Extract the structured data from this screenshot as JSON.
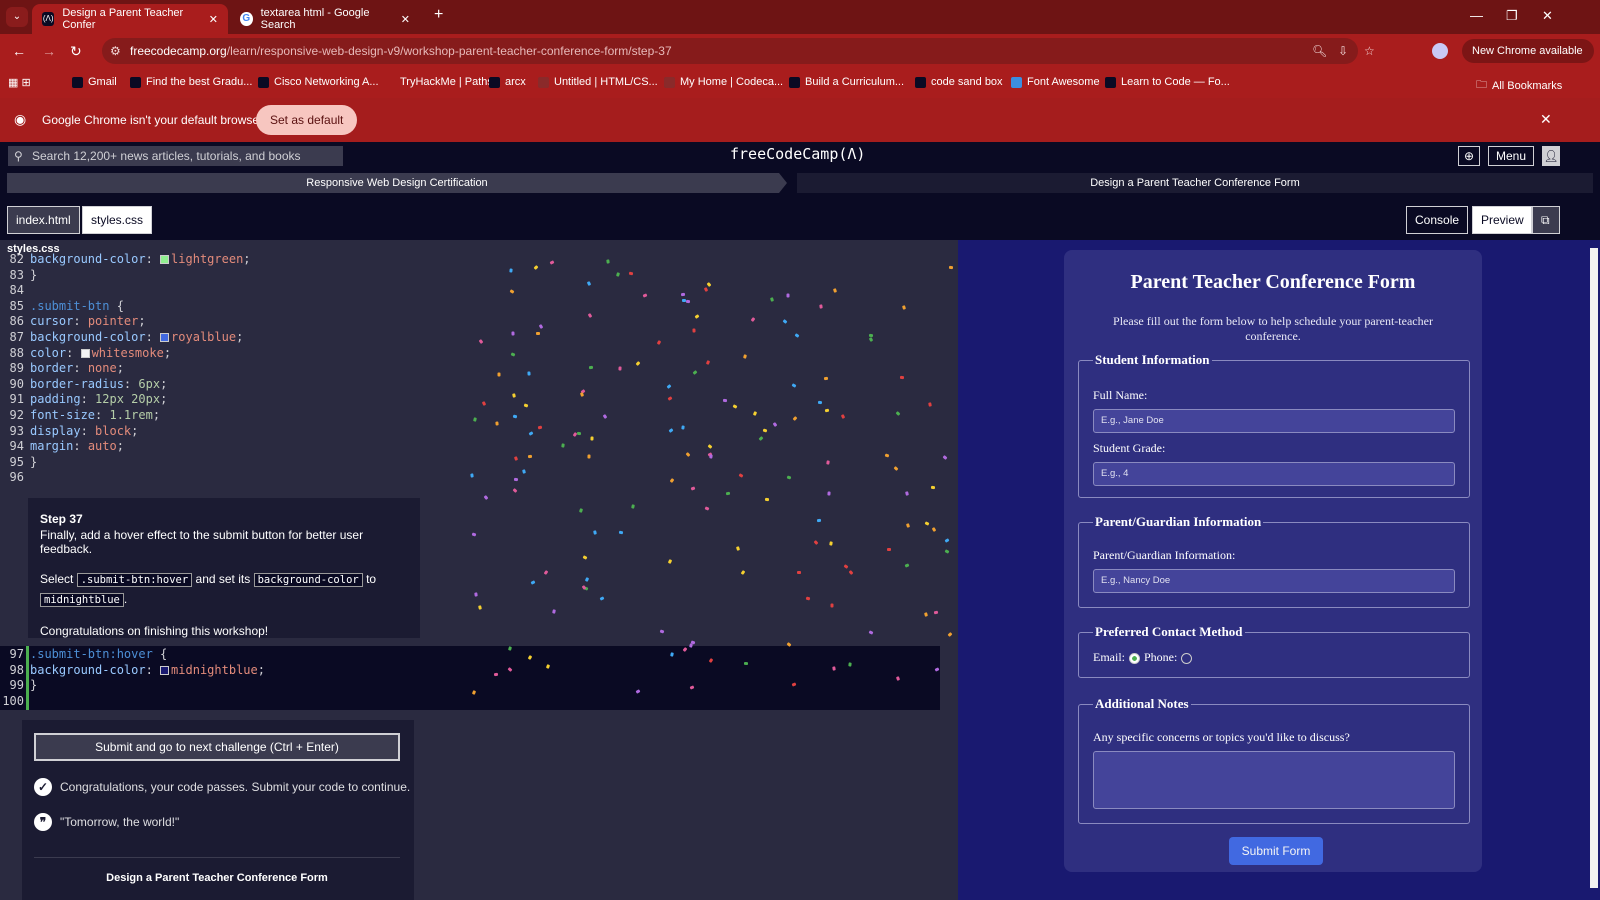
{
  "browser": {
    "tabs": [
      {
        "title": "Design a Parent Teacher Confer",
        "active": true
      },
      {
        "title": "textarea html - Google Search",
        "active": false
      }
    ],
    "url_host": "freecodecamp.org",
    "url_path": "/learn/responsive-web-design-v9/workshop-parent-teacher-conference-form/step-37",
    "new_chrome": "New Chrome available",
    "bookmarks": [
      "Gmail",
      "Find the best Gradu...",
      "Cisco Networking A...",
      "TryHackMe | Paths",
      "arcx",
      "Untitled | HTML/CS...",
      "My Home | Codeca...",
      "Build a Curriculum...",
      "code sand box",
      "Font Awesome",
      "Learn to Code — Fo..."
    ],
    "all_bookmarks": "All Bookmarks",
    "infobar": {
      "message": "Google Chrome isn't your default browser",
      "button": "Set as default"
    }
  },
  "fcc": {
    "search_placeholder": "Search 12,200+ news articles, tutorials, and books",
    "logo": "freeCodeCamp(Λ)",
    "menu": "Menu",
    "breadcrumb": [
      "Responsive Web Design Certification",
      "Design a Parent Teacher Conference Form"
    ],
    "file_tabs": [
      "index.html",
      "styles.css"
    ],
    "console": "Console",
    "preview": "Preview",
    "file_name": "styles.css"
  },
  "code_top": [
    {
      "n": "82",
      "indent": true,
      "prop": "background-color",
      "swatch": "#90ee90",
      "val": "lightgreen"
    },
    {
      "n": "83",
      "text": "}"
    },
    {
      "n": "84",
      "text": ""
    },
    {
      "n": "85",
      "sel": ".submit-btn",
      "text": " {"
    },
    {
      "n": "86",
      "indent": true,
      "prop": "cursor",
      "val": "pointer"
    },
    {
      "n": "87",
      "indent": true,
      "prop": "background-color",
      "swatch": "#4169e1",
      "val": "royalblue"
    },
    {
      "n": "88",
      "indent": true,
      "prop": "color",
      "swatch": "#f5f5f5",
      "val": "whitesmoke"
    },
    {
      "n": "89",
      "indent": true,
      "prop": "border",
      "val": "none"
    },
    {
      "n": "90",
      "indent": true,
      "prop": "border-radius",
      "num": "6px"
    },
    {
      "n": "91",
      "indent": true,
      "prop": "padding",
      "num": "12px 20px"
    },
    {
      "n": "92",
      "indent": true,
      "prop": "font-size",
      "num": "1.1rem"
    },
    {
      "n": "93",
      "indent": true,
      "prop": "display",
      "val": "block"
    },
    {
      "n": "94",
      "indent": true,
      "prop": "margin",
      "val": "auto"
    },
    {
      "n": "95",
      "text": "}"
    },
    {
      "n": "96",
      "text": ""
    }
  ],
  "code_bottom": [
    {
      "n": "97",
      "sel": ".submit-btn:hover",
      "text": " {"
    },
    {
      "n": "98",
      "indent": true,
      "prop": "background-color",
      "swatch": "#191970",
      "val": "midnightblue"
    },
    {
      "n": "99",
      "text": "}"
    },
    {
      "n": "100",
      "text": ""
    }
  ],
  "step": {
    "title": "Step 37",
    "desc": "Finally, add a hover effect to the submit button for better user feedback.",
    "select": "Select",
    "code1": ".submit-btn:hover",
    "and": "and set its",
    "code2": "background-color",
    "to": "to",
    "code3": "midnightblue",
    "congrats": "Congratulations on finishing this workshop!"
  },
  "lower": {
    "submit": "Submit and go to next challenge (Ctrl + Enter)",
    "passes": "Congratulations, your code passes. Submit your code to continue.",
    "quote": "\"Tomorrow, the world!\"",
    "footer": "Design a Parent Teacher Conference Form"
  },
  "form": {
    "title": "Parent Teacher Conference Form",
    "intro": "Please fill out the form below to help schedule your parent-teacher conference.",
    "student_legend": "Student Information",
    "full_name_label": "Full Name:",
    "full_name_placeholder": "E.g., Jane Doe",
    "grade_label": "Student Grade:",
    "grade_placeholder": "E.g., 4",
    "parent_legend": "Parent/Guardian Information",
    "parent_label": "Parent/Guardian Information:",
    "parent_placeholder": "E.g., Nancy Doe",
    "contact_legend": "Preferred Contact Method",
    "email": "Email:",
    "phone": "Phone:",
    "selected": "email",
    "notes_legend": "Additional Notes",
    "notes_label": "Any specific concerns or topics you'd like to discuss?",
    "submit": "Submit Form"
  },
  "colors": {
    "browser": "#a91d1d",
    "fcc_bg": "#0a0a23",
    "preview_bg": "#191970",
    "form_button": "#4169e1"
  }
}
